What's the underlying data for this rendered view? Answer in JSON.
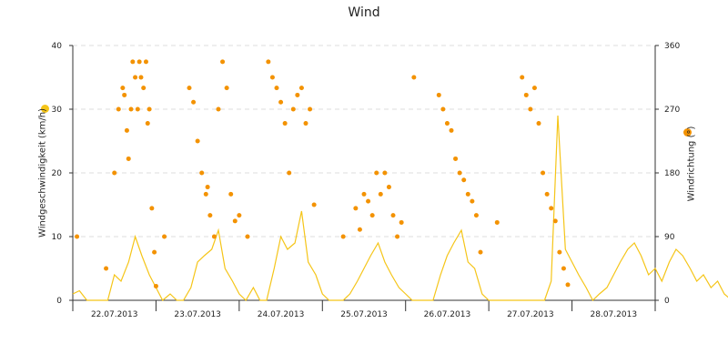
{
  "colors": {
    "speed": "#f5c518",
    "direction": "#f39200",
    "grid": "#dcdcdc",
    "axis": "#333333"
  },
  "chart_data": {
    "type": "line",
    "title": "Wind",
    "ylabel": "Windgeschwindigkeit (km/h)",
    "ylabel_right": "Windrichtung (°)",
    "ylim": [
      0,
      40
    ],
    "ylim_right": [
      0,
      360
    ],
    "yticks": [
      "0",
      "10",
      "20",
      "30",
      "40"
    ],
    "yticks_right": [
      "0",
      "90",
      "180",
      "270",
      "360"
    ],
    "grid": "horizontal dashed",
    "legend": "color markers beside axis labels",
    "x_categories": [
      "22.07.2013",
      "23.07.2013",
      "24.07.2013",
      "25.07.2013",
      "26.07.2013",
      "27.07.2013",
      "28.07.2013"
    ],
    "series": [
      {
        "axis": "left",
        "style": "line",
        "x": [
          21.0,
          21.08,
          21.17,
          21.25,
          21.33,
          21.42,
          21.5,
          21.58,
          21.67,
          21.75,
          21.83,
          21.92,
          22.0,
          22.08,
          22.17,
          22.25,
          22.33,
          22.42,
          22.5,
          22.58,
          22.67,
          22.75,
          22.83,
          22.92,
          23.0,
          23.08,
          23.17,
          23.25,
          23.33,
          23.42,
          23.5,
          23.58,
          23.67,
          23.75,
          23.83,
          23.92,
          24.0,
          24.08,
          24.17,
          24.25,
          24.33,
          24.42,
          24.5,
          24.58,
          24.67,
          24.75,
          24.83,
          24.92,
          25.0,
          25.08,
          25.17,
          25.25,
          25.33,
          25.42,
          25.5,
          25.58,
          25.67,
          25.75,
          25.83,
          25.92,
          26.0,
          26.08,
          26.17,
          26.25,
          26.33,
          26.42,
          26.5,
          26.58,
          26.67,
          26.75,
          26.83,
          26.92,
          27.0,
          27.08,
          27.17,
          27.25,
          27.33,
          27.42,
          27.5,
          27.58,
          27.67,
          27.75,
          27.83,
          27.92,
          28.0,
          28.08,
          28.17,
          28.25,
          28.33,
          28.42,
          28.5,
          28.58,
          28.67,
          28.75,
          28.83,
          28.92
        ],
        "y": [
          1,
          1.5,
          0,
          0,
          0,
          0,
          4,
          3,
          6,
          10,
          7,
          4,
          2,
          0,
          1,
          0,
          0,
          2,
          6,
          7,
          8,
          11,
          5,
          3,
          1,
          0,
          2,
          0,
          0,
          5,
          10,
          8,
          9,
          14,
          6,
          4,
          1,
          0,
          0,
          0,
          1,
          3,
          5,
          7,
          9,
          6,
          4,
          2,
          1,
          0,
          0,
          0,
          0,
          4,
          7,
          9,
          11,
          6,
          5,
          1,
          0,
          0,
          0,
          0,
          0,
          0,
          0,
          0,
          0,
          3,
          29,
          8,
          6,
          4,
          2,
          0,
          1,
          2,
          4,
          6,
          8,
          9,
          7,
          4,
          5,
          3,
          6,
          8,
          7,
          5,
          3,
          4,
          2,
          3,
          1,
          0
        ]
      },
      {
        "axis": "right",
        "style": "dots",
        "x": [
          21.05,
          21.4,
          21.5,
          21.55,
          21.6,
          21.62,
          21.65,
          21.67,
          21.7,
          21.72,
          21.75,
          21.78,
          21.8,
          21.82,
          21.85,
          21.88,
          21.9,
          21.92,
          21.95,
          21.98,
          22.0,
          22.1,
          22.4,
          22.45,
          22.5,
          22.55,
          22.6,
          22.62,
          22.65,
          22.7,
          22.75,
          22.8,
          22.85,
          22.9,
          22.95,
          23.0,
          23.1,
          23.35,
          23.4,
          23.45,
          23.5,
          23.55,
          23.6,
          23.65,
          23.7,
          23.75,
          23.8,
          23.85,
          23.9,
          24.25,
          24.4,
          24.45,
          24.5,
          24.55,
          24.6,
          24.65,
          24.7,
          24.75,
          24.8,
          24.85,
          24.9,
          24.95,
          25.1,
          25.4,
          25.45,
          25.5,
          25.55,
          25.6,
          25.65,
          25.7,
          25.75,
          25.8,
          25.85,
          25.9,
          26.1,
          26.4,
          26.45,
          26.5,
          26.55,
          26.6,
          26.65,
          26.7,
          26.75,
          26.8,
          26.85,
          26.9,
          26.95
        ],
        "y": [
          90,
          45,
          180,
          270,
          300,
          290,
          240,
          200,
          270,
          337,
          315,
          270,
          337,
          315,
          300,
          337,
          250,
          270,
          130,
          68,
          20,
          90,
          300,
          280,
          225,
          180,
          150,
          160,
          120,
          90,
          270,
          337,
          300,
          150,
          112,
          120,
          90,
          337,
          315,
          300,
          280,
          250,
          180,
          270,
          290,
          300,
          250,
          270,
          135,
          90,
          130,
          100,
          150,
          140,
          120,
          180,
          150,
          180,
          160,
          120,
          90,
          110,
          315,
          290,
          270,
          250,
          240,
          200,
          180,
          170,
          150,
          140,
          120,
          68,
          110,
          315,
          290,
          270,
          300,
          250,
          180,
          150,
          130,
          112,
          68,
          45,
          22
        ]
      }
    ]
  }
}
